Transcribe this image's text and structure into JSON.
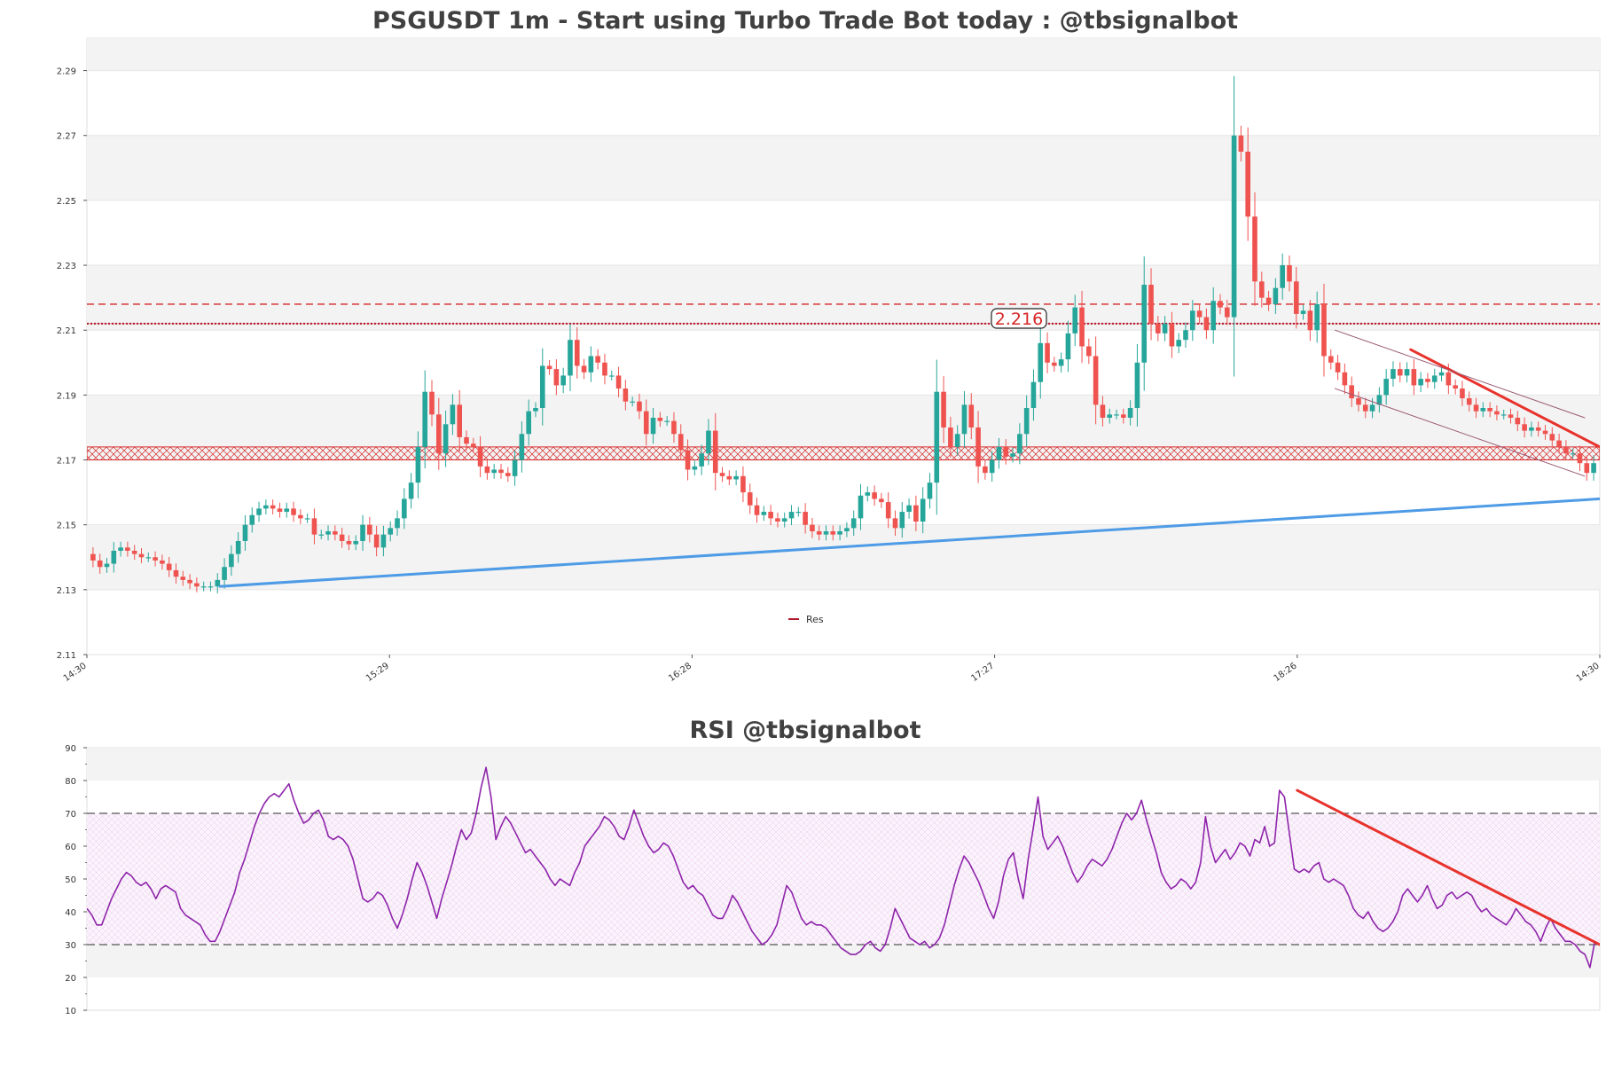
{
  "chart_data": [
    {
      "type": "candlestick",
      "title": "PSGUSDT 1m - Start using Turbo Trade Bot today : @tbsignalbot",
      "ylim": [
        2.11,
        2.3
      ],
      "yticks": [
        "2.11",
        "2.13",
        "2.15",
        "2.17",
        "2.19",
        "2.21",
        "2.23",
        "2.25",
        "2.27",
        "2.29"
      ],
      "xticks": [
        "14:30",
        "15:29",
        "16:28",
        "17:27",
        "18:26",
        "14:30"
      ],
      "legend": [
        {
          "label": "Res",
          "color": "#b2182b"
        }
      ],
      "price_label": "2.216",
      "levels": [
        {
          "name": "dashed-resistance",
          "value": 2.218,
          "style": "dashed",
          "color": "#d62728"
        },
        {
          "name": "resistance",
          "value": 2.212,
          "style": "dotted",
          "color": "#b2182b"
        },
        {
          "name": "support-zone",
          "from": 2.17,
          "to": 2.174,
          "style": "hatched",
          "color": "#d62728"
        }
      ],
      "trendlines": [
        {
          "name": "support-trendline",
          "from": [
            0.088,
            2.131
          ],
          "to": [
            1.0,
            2.158
          ],
          "color": "#4e9be6"
        },
        {
          "name": "resistance-trendline",
          "from": [
            0.875,
            2.204
          ],
          "to": [
            1.0,
            2.174
          ],
          "color": "#e8322c"
        },
        {
          "name": "channel-upper",
          "from": [
            0.825,
            2.21
          ],
          "to": [
            0.99,
            2.183
          ],
          "color": "#9a5b74"
        },
        {
          "name": "channel-lower",
          "from": [
            0.825,
            2.192
          ],
          "to": [
            0.99,
            2.165
          ],
          "color": "#9a5b74"
        }
      ],
      "closes": [
        2.139,
        2.137,
        2.138,
        2.142,
        2.143,
        2.142,
        2.141,
        2.14,
        2.14,
        2.139,
        2.138,
        2.136,
        2.134,
        2.133,
        2.132,
        2.131,
        2.131,
        2.131,
        2.133,
        2.137,
        2.141,
        2.145,
        2.15,
        2.153,
        2.155,
        2.156,
        2.155,
        2.154,
        2.155,
        2.153,
        2.152,
        2.152,
        2.147,
        2.147,
        2.148,
        2.147,
        2.145,
        2.144,
        2.145,
        2.15,
        2.147,
        2.143,
        2.147,
        2.149,
        2.152,
        2.158,
        2.163,
        2.174,
        2.191,
        2.184,
        2.172,
        2.181,
        2.187,
        2.177,
        2.175,
        2.174,
        2.168,
        2.166,
        2.167,
        2.166,
        2.165,
        2.17,
        2.178,
        2.185,
        2.186,
        2.199,
        2.198,
        2.193,
        2.196,
        2.207,
        2.199,
        2.197,
        2.202,
        2.2,
        2.196,
        2.196,
        2.192,
        2.188,
        2.188,
        2.185,
        2.178,
        2.183,
        2.182,
        2.182,
        2.178,
        2.173,
        2.167,
        2.168,
        2.172,
        2.179,
        2.166,
        2.165,
        2.164,
        2.165,
        2.16,
        2.156,
        2.153,
        2.154,
        2.152,
        2.151,
        2.152,
        2.154,
        2.154,
        2.15,
        2.148,
        2.147,
        2.148,
        2.147,
        2.148,
        2.149,
        2.152,
        2.159,
        2.16,
        2.158,
        2.157,
        2.152,
        2.149,
        2.154,
        2.156,
        2.151,
        2.158,
        2.163,
        2.191,
        2.18,
        2.174,
        2.178,
        2.187,
        2.18,
        2.168,
        2.166,
        2.17,
        2.174,
        2.171,
        2.172,
        2.178,
        2.186,
        2.194,
        2.206,
        2.2,
        2.199,
        2.201,
        2.209,
        2.217,
        2.205,
        2.202,
        2.187,
        2.183,
        2.184,
        2.184,
        2.183,
        2.186,
        2.2,
        2.224,
        2.212,
        2.209,
        2.212,
        2.205,
        2.207,
        2.21,
        2.216,
        2.214,
        2.21,
        2.219,
        2.217,
        2.214,
        2.27,
        2.265,
        2.245,
        2.225,
        2.22,
        2.218,
        2.223,
        2.23,
        2.225,
        2.215,
        2.216,
        2.21,
        2.218,
        2.202,
        2.2,
        2.197,
        2.193,
        2.189,
        2.187,
        2.185,
        2.187,
        2.19,
        2.195,
        2.198,
        2.196,
        2.198,
        2.193,
        2.195,
        2.194,
        2.196,
        2.197,
        2.193,
        2.192,
        2.189,
        2.187,
        2.185,
        2.186,
        2.185,
        2.184,
        2.184,
        2.183,
        2.181,
        2.179,
        2.18,
        2.179,
        2.178,
        2.176,
        2.174,
        2.172,
        2.172,
        2.169,
        2.166,
        2.169
      ]
    },
    {
      "type": "line",
      "title": "RSI @tbsignalbot",
      "ylim": [
        10,
        90
      ],
      "yticks": [
        "10",
        "20",
        "30",
        "40",
        "50",
        "60",
        "70",
        "80",
        "90"
      ],
      "levels": [
        {
          "name": "overbought",
          "value": 70,
          "style": "dashed"
        },
        {
          "name": "oversold",
          "value": 30,
          "style": "dashed"
        }
      ],
      "band": [
        30,
        70
      ],
      "trendline": {
        "from": [
          0.8,
          77
        ],
        "to": [
          1.0,
          30
        ],
        "color": "#e8322c"
      },
      "values": [
        41,
        39,
        36,
        36,
        40,
        44,
        47,
        50,
        52,
        51,
        49,
        48,
        49,
        47,
        44,
        47,
        48,
        47,
        46,
        41,
        39,
        38,
        37,
        36,
        33,
        31,
        31,
        34,
        38,
        42,
        46,
        52,
        56,
        61,
        66,
        70,
        73,
        75,
        76,
        75,
        77,
        79,
        74,
        70,
        67,
        68,
        70,
        71,
        68,
        63,
        62,
        63,
        62,
        60,
        56,
        50,
        44,
        43,
        44,
        46,
        45,
        42,
        38,
        35,
        39,
        44,
        50,
        55,
        52,
        48,
        43,
        38,
        44,
        49,
        54,
        60,
        65,
        62,
        64,
        70,
        78,
        84,
        75,
        62,
        66,
        69,
        67,
        64,
        61,
        58,
        59,
        57,
        55,
        53,
        50,
        48,
        50,
        49,
        48,
        52,
        55,
        60,
        62,
        64,
        66,
        69,
        68,
        66,
        63,
        62,
        66,
        71,
        67,
        63,
        60,
        58,
        59,
        61,
        60,
        57,
        53,
        49,
        47,
        48,
        46,
        45,
        42,
        39,
        38,
        38,
        41,
        45,
        43,
        40,
        37,
        34,
        32,
        30,
        31,
        33,
        36,
        42,
        48,
        46,
        42,
        38,
        36,
        37,
        36,
        36,
        35,
        33,
        31,
        29,
        28,
        27,
        27,
        28,
        30,
        31,
        29,
        28,
        30,
        35,
        41,
        38,
        35,
        32,
        31,
        30,
        31,
        29,
        30,
        32,
        36,
        42,
        48,
        53,
        57,
        55,
        52,
        49,
        45,
        41,
        38,
        43,
        51,
        56,
        58,
        50,
        44,
        56,
        65,
        75,
        63,
        59,
        61,
        63,
        60,
        56,
        52,
        49,
        51,
        54,
        56,
        55,
        54,
        56,
        59,
        63,
        67,
        70,
        68,
        70,
        74,
        68,
        63,
        58,
        52,
        49,
        47,
        48,
        50,
        49,
        47,
        49,
        55,
        69,
        60,
        55,
        57,
        59,
        56,
        58,
        61,
        60,
        57,
        62,
        61,
        66,
        60,
        61,
        77,
        75,
        64,
        53,
        52,
        53,
        52,
        54,
        55,
        50,
        49,
        50,
        49,
        48,
        45,
        41,
        39,
        38,
        40,
        37,
        35,
        34,
        35,
        37,
        40,
        45,
        47,
        45,
        43,
        45,
        48,
        44,
        41,
        42,
        45,
        46,
        44,
        45,
        46,
        45,
        42,
        40,
        41,
        39,
        38,
        37,
        36,
        38,
        41,
        39,
        37,
        36,
        34,
        31,
        35,
        38,
        35,
        33,
        31,
        31,
        30,
        28,
        27,
        23,
        31,
        30
      ]
    }
  ]
}
